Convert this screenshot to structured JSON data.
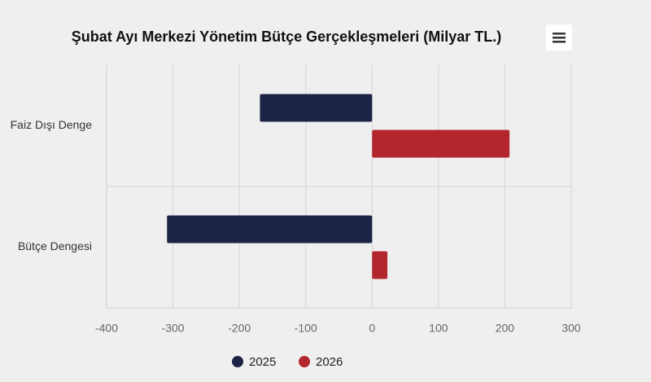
{
  "chart_data": {
    "type": "bar",
    "orientation": "horizontal",
    "title": "Şubat Ayı Merkezi Yönetim Bütçe Gerçekleşmeleri (Milyar TL.)",
    "categories": [
      "Faiz Dışı Denge",
      "Bütçe Dengesi"
    ],
    "series": [
      {
        "name": "2025",
        "color": "#1b2347",
        "values": [
          -169,
          -309
        ]
      },
      {
        "name": "2026",
        "color": "#b3262d",
        "values": [
          207,
          23
        ]
      }
    ],
    "xlim": [
      -400,
      300
    ],
    "xticks": [
      -400,
      -300,
      -200,
      -100,
      0,
      100,
      200,
      300
    ],
    "grid": true,
    "legend": "bottom"
  }
}
